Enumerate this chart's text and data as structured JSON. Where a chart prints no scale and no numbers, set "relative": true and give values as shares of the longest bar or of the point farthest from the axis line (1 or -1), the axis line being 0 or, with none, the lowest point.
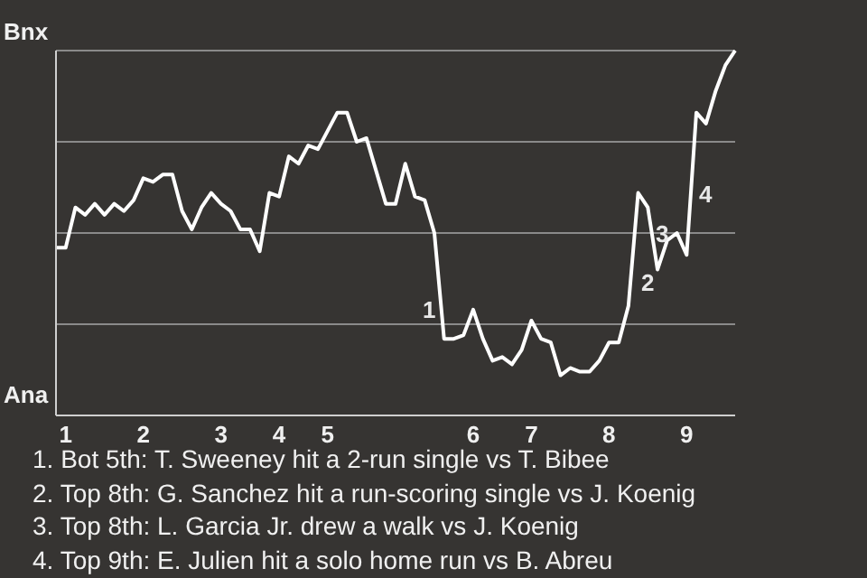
{
  "chart_data": {
    "type": "line",
    "relative": true,
    "categories": [
      null,
      "1",
      null,
      null,
      null,
      null,
      null,
      null,
      null,
      "2",
      null,
      null,
      null,
      null,
      null,
      null,
      null,
      "3",
      null,
      null,
      null,
      null,
      null,
      "4",
      null,
      null,
      null,
      null,
      "5",
      null,
      null,
      null,
      null,
      null,
      null,
      null,
      null,
      null,
      null,
      null,
      null,
      null,
      null,
      "6",
      null,
      null,
      null,
      null,
      null,
      "7",
      null,
      null,
      null,
      null,
      null,
      null,
      null,
      "8",
      null,
      null,
      null,
      null,
      null,
      null,
      null,
      "9",
      null,
      null,
      null,
      null,
      null
    ],
    "series": [
      {
        "color": "#ffffff",
        "values": [
          0.46,
          0.46,
          0.57,
          0.55,
          0.58,
          0.55,
          0.58,
          0.56,
          0.59,
          0.65,
          0.64,
          0.66,
          0.66,
          0.56,
          0.51,
          0.57,
          0.61,
          0.58,
          0.56,
          0.51,
          0.51,
          0.45,
          0.61,
          0.6,
          0.71,
          0.69,
          0.74,
          0.73,
          0.78,
          0.83,
          0.83,
          0.75,
          0.76,
          0.67,
          0.58,
          0.58,
          0.69,
          0.6,
          0.59,
          0.5,
          0.21,
          0.21,
          0.22,
          0.29,
          0.21,
          0.15,
          0.16,
          0.14,
          0.18,
          0.26,
          0.21,
          0.2,
          0.11,
          0.13,
          0.12,
          0.12,
          0.15,
          0.2,
          0.2,
          0.3,
          0.61,
          0.57,
          0.4,
          0.48,
          0.5,
          0.44,
          0.83,
          0.8,
          0.89,
          0.96,
          1
        ]
      }
    ],
    "grid": "y",
    "marker": "none",
    "line_style": "solid",
    "annotations": [
      "Bnx",
      "Ana",
      "1",
      "2",
      "3",
      "4",
      "1. Bot 5th: T. Sweeney hit a 2-run single vs T. Bibee",
      "2. Top 8th: G. Sanchez hit a run-scoring single vs J. Koenig",
      "3. Top 8th: L. Garcia Jr. drew a walk vs J. Koenig",
      "4. Top 9th: E. Julien hit a solo home run vs B. Abreu"
    ]
  }
}
